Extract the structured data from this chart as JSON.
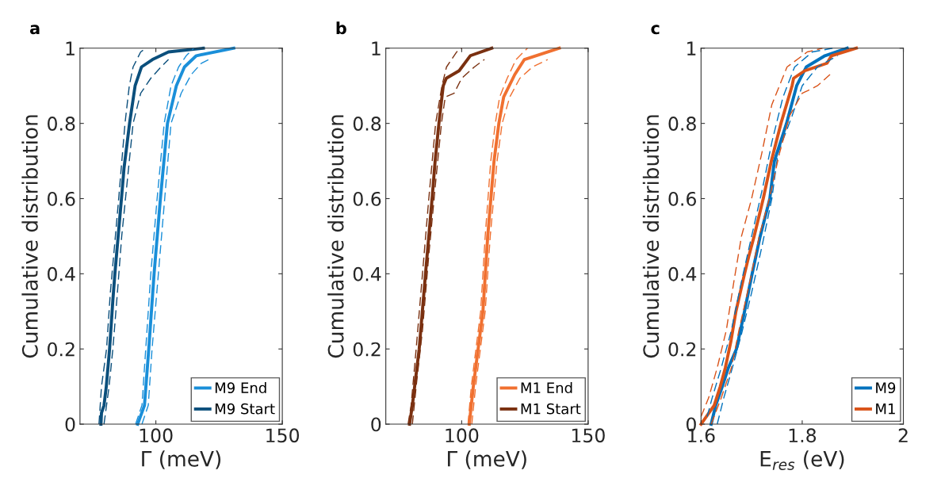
{
  "chart_data": [
    {
      "type": "line",
      "title": "a",
      "xlabel": "Γ (meV)",
      "ylabel": "Cumulative distribution",
      "xlim": [
        70,
        150
      ],
      "xticks": [
        100,
        150
      ],
      "ylim": [
        0,
        1
      ],
      "yticks": [
        0,
        0.2,
        0.4,
        0.6,
        0.8,
        1
      ],
      "grid": false,
      "legend": "bottom right",
      "series": [
        {
          "name": "M9 End",
          "color": "#1a8fd9",
          "x": [
            92.8,
            95.5,
            97.2,
            99.3,
            101.8,
            104.6,
            108.1,
            111.3,
            116,
            130.8
          ],
          "values": [
            0,
            0.05,
            0.2,
            0.4,
            0.6,
            0.8,
            0.9,
            0.95,
            0.98,
            1
          ]
        },
        {
          "name": "M9 Start",
          "color": "#0b4f7c",
          "x": [
            78.3,
            78.5,
            79.5,
            80.4,
            81.7,
            83.0,
            83.8,
            85.1,
            86.4,
            87.4,
            89.6,
            91.8,
            94.3,
            98.7,
            105,
            118.8
          ],
          "values": [
            0,
            0.03,
            0.05,
            0.1,
            0.2,
            0.33,
            0.4,
            0.5,
            0.6,
            0.68,
            0.8,
            0.9,
            0.95,
            0.97,
            0.99,
            1
          ]
        },
        {
          "color": "#1a8fd9",
          "line_style": "dashed",
          "x": [
            92,
            94.5,
            96,
            98,
            100.5,
            103.3,
            106,
            109,
            112,
            115
          ],
          "values": [
            0,
            0.05,
            0.2,
            0.4,
            0.6,
            0.8,
            0.9,
            0.95,
            0.98,
            1
          ]
        },
        {
          "color": "#1a8fd9",
          "line_style": "dashed",
          "x": [
            94.5,
            97,
            98.5,
            101,
            103.5,
            106,
            110,
            114,
            118,
            121
          ],
          "values": [
            0,
            0.05,
            0.2,
            0.4,
            0.6,
            0.8,
            0.88,
            0.93,
            0.96,
            0.97
          ]
        },
        {
          "color": "#0b4f7c",
          "line_style": "dashed",
          "x": [
            77.5,
            78.5,
            80.5,
            82,
            84,
            85.3,
            87.8,
            89.5,
            91,
            94,
            96
          ],
          "values": [
            0,
            0.1,
            0.2,
            0.35,
            0.5,
            0.6,
            0.8,
            0.9,
            0.95,
            0.99,
            1
          ]
        },
        {
          "color": "#0b4f7c",
          "line_style": "dashed",
          "x": [
            79.5,
            81.5,
            83,
            84.8,
            86.5,
            88,
            91,
            94,
            98,
            102,
            105
          ],
          "values": [
            0,
            0.1,
            0.2,
            0.35,
            0.5,
            0.6,
            0.8,
            0.88,
            0.92,
            0.95,
            0.97
          ]
        }
      ]
    },
    {
      "type": "line",
      "title": "b",
      "xlabel": "Γ (meV)",
      "ylabel": "Cumulative distribution",
      "xlim": [
        70,
        150
      ],
      "xticks": [
        100,
        150
      ],
      "ylim": [
        0,
        1
      ],
      "yticks": [
        0,
        0.2,
        0.4,
        0.6,
        0.8,
        1
      ],
      "grid": false,
      "legend": "bottom right",
      "series": [
        {
          "name": "M1 End",
          "color": "#f07030",
          "x": [
            103,
            104.6,
            108.4,
            110.3,
            112.8,
            114.7,
            116.6,
            121,
            124.8,
            138.6
          ],
          "values": [
            0,
            0.1,
            0.3,
            0.5,
            0.7,
            0.8,
            0.87,
            0.93,
            0.97,
            1
          ]
        },
        {
          "name": "M1 Start",
          "color": "#7a3010",
          "x": [
            79.4,
            80.5,
            83.2,
            85.7,
            88.3,
            89.5,
            91.0,
            92.7,
            93.9,
            99,
            103.4,
            111.9
          ],
          "values": [
            0,
            0.05,
            0.2,
            0.4,
            0.6,
            0.7,
            0.8,
            0.9,
            0.92,
            0.94,
            0.98,
            1
          ]
        },
        {
          "color": "#f07030",
          "line_style": "dashed",
          "x": [
            102.5,
            103.8,
            107.5,
            109.3,
            111.5,
            113.3,
            115,
            118,
            121.5,
            126
          ],
          "values": [
            0,
            0.1,
            0.3,
            0.5,
            0.7,
            0.8,
            0.87,
            0.92,
            0.97,
            1
          ]
        },
        {
          "color": "#f07030",
          "line_style": "dashed",
          "x": [
            104,
            105.5,
            109.3,
            111.3,
            114,
            116,
            119,
            123,
            128,
            134
          ],
          "values": [
            0,
            0.1,
            0.3,
            0.5,
            0.7,
            0.8,
            0.87,
            0.92,
            0.95,
            0.97
          ]
        },
        {
          "color": "#7a3010",
          "line_style": "dashed",
          "x": [
            78.8,
            80,
            82,
            84.5,
            87,
            89.7,
            92.2,
            94,
            98,
            100
          ],
          "values": [
            0,
            0.05,
            0.2,
            0.4,
            0.6,
            0.8,
            0.9,
            0.95,
            0.99,
            1
          ]
        },
        {
          "color": "#7a3010",
          "line_style": "dashed",
          "x": [
            80.5,
            82,
            84.5,
            87,
            89.8,
            92,
            93.5,
            97,
            100,
            105,
            109
          ],
          "values": [
            0,
            0.1,
            0.25,
            0.45,
            0.65,
            0.8,
            0.87,
            0.88,
            0.92,
            0.95,
            0.97
          ]
        }
      ]
    },
    {
      "type": "line",
      "title": "c",
      "xlabel": "E$_{res}$ (eV)",
      "ylabel": "Cumulative distribution",
      "xlim": [
        1.6,
        2
      ],
      "xticks": [
        1.6,
        1.8,
        2
      ],
      "ylim": [
        0,
        1
      ],
      "yticks": [
        0,
        0.2,
        0.4,
        0.6,
        0.8,
        1
      ],
      "grid": false,
      "legend": "bottom right",
      "series": [
        {
          "name": "M9",
          "color": "#0072bd",
          "x": [
            1.62,
            1.629,
            1.642,
            1.654,
            1.67,
            1.686,
            1.701,
            1.717,
            1.736,
            1.745,
            1.769,
            1.789,
            1.808,
            1.845,
            1.889
          ],
          "values": [
            0,
            0.05,
            0.1,
            0.15,
            0.2,
            0.3,
            0.4,
            0.5,
            0.6,
            0.7,
            0.8,
            0.9,
            0.95,
            0.98,
            1
          ]
        },
        {
          "name": "M1",
          "color": "#d95319",
          "x": [
            1.6,
            1.626,
            1.638,
            1.648,
            1.659,
            1.669,
            1.686,
            1.695,
            1.705,
            1.723,
            1.739,
            1.758,
            1.78,
            1.783,
            1.805,
            1.849,
            1.858,
            1.907
          ],
          "values": [
            0,
            0.05,
            0.1,
            0.15,
            0.22,
            0.3,
            0.4,
            0.45,
            0.5,
            0.6,
            0.7,
            0.8,
            0.9,
            0.92,
            0.94,
            0.96,
            0.98,
            1
          ]
        },
        {
          "color": "#0072bd",
          "line_style": "dashed",
          "x": [
            1.612,
            1.622,
            1.64,
            1.66,
            1.68,
            1.7,
            1.722,
            1.74,
            1.762,
            1.785,
            1.82,
            1.86
          ],
          "values": [
            0.02,
            0.07,
            0.15,
            0.25,
            0.38,
            0.5,
            0.63,
            0.75,
            0.87,
            0.95,
            0.99,
            1
          ]
        },
        {
          "color": "#0072bd",
          "line_style": "dashed",
          "x": [
            1.632,
            1.645,
            1.662,
            1.68,
            1.7,
            1.72,
            1.74,
            1.752,
            1.78,
            1.8,
            1.83,
            1.87
          ],
          "values": [
            0,
            0.07,
            0.15,
            0.24,
            0.35,
            0.47,
            0.6,
            0.72,
            0.82,
            0.9,
            0.95,
            0.98
          ]
        },
        {
          "color": "#d95319",
          "line_style": "dashed",
          "x": [
            1.6,
            1.615,
            1.632,
            1.65,
            1.665,
            1.68,
            1.7,
            1.72,
            1.74,
            1.77,
            1.81,
            1.84
          ],
          "values": [
            0.02,
            0.07,
            0.15,
            0.25,
            0.38,
            0.5,
            0.6,
            0.72,
            0.85,
            0.95,
            0.99,
            1
          ]
        },
        {
          "color": "#d95319",
          "line_style": "dashed",
          "x": [
            1.62,
            1.64,
            1.66,
            1.675,
            1.695,
            1.715,
            1.735,
            1.755,
            1.775,
            1.8,
            1.83,
            1.855
          ],
          "values": [
            0,
            0.07,
            0.15,
            0.25,
            0.37,
            0.5,
            0.6,
            0.72,
            0.82,
            0.88,
            0.9,
            0.93
          ]
        }
      ]
    }
  ]
}
